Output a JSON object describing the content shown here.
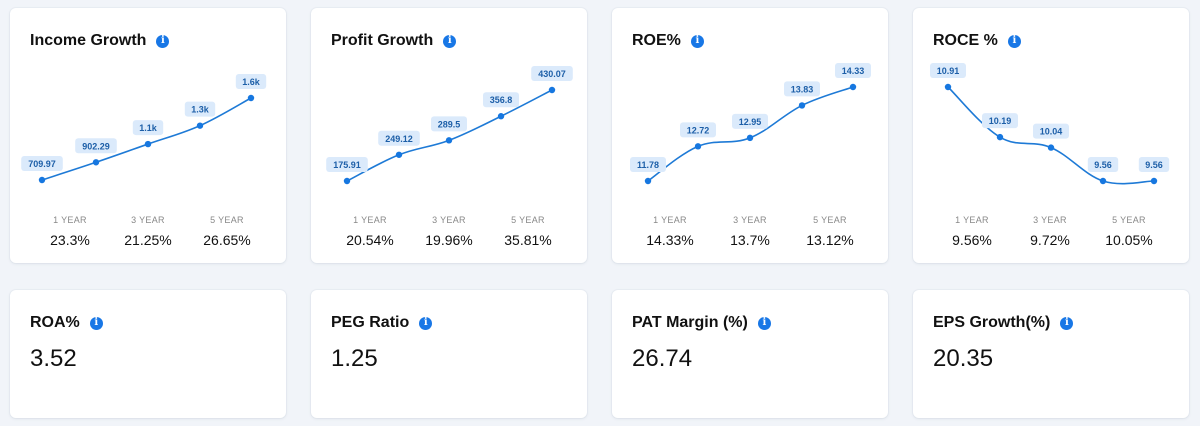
{
  "cards": [
    {
      "title": "Income Growth",
      "chart_data": {
        "type": "line",
        "x": [
          "0",
          "1",
          "2",
          "3",
          "4"
        ],
        "values": [
          709.97,
          902.29,
          1100,
          1300,
          1600
        ],
        "data_labels": [
          "709.97",
          "902.29",
          "1.1k",
          "1.3k",
          "1.6k"
        ]
      },
      "periods": [
        {
          "label": "1 YEAR",
          "value": "23.3%"
        },
        {
          "label": "3 YEAR",
          "value": "21.25%"
        },
        {
          "label": "5 YEAR",
          "value": "26.65%"
        }
      ]
    },
    {
      "title": "Profit Growth",
      "chart_data": {
        "type": "line",
        "x": [
          "0",
          "1",
          "2",
          "3",
          "4"
        ],
        "values": [
          175.91,
          249.12,
          289.5,
          356.8,
          430.07
        ],
        "data_labels": [
          "175.91",
          "249.12",
          "289.5",
          "356.8",
          "430.07"
        ]
      },
      "periods": [
        {
          "label": "1 YEAR",
          "value": "20.54%"
        },
        {
          "label": "3 YEAR",
          "value": "19.96%"
        },
        {
          "label": "5 YEAR",
          "value": "35.81%"
        }
      ]
    },
    {
      "title": "ROE%",
      "chart_data": {
        "type": "line",
        "x": [
          "0",
          "1",
          "2",
          "3",
          "4"
        ],
        "values": [
          11.78,
          12.72,
          12.95,
          13.83,
          14.33
        ],
        "data_labels": [
          "11.78",
          "12.72",
          "12.95",
          "13.83",
          "14.33"
        ]
      },
      "periods": [
        {
          "label": "1 YEAR",
          "value": "14.33%"
        },
        {
          "label": "3 YEAR",
          "value": "13.7%"
        },
        {
          "label": "5 YEAR",
          "value": "13.12%"
        }
      ]
    },
    {
      "title": "ROCE %",
      "chart_data": {
        "type": "line",
        "x": [
          "0",
          "1",
          "2",
          "3",
          "4"
        ],
        "values": [
          10.91,
          10.19,
          10.04,
          9.56,
          9.56
        ],
        "data_labels": [
          "10.91",
          "10.19",
          "10.04",
          "9.56",
          "9.56"
        ]
      },
      "periods": [
        {
          "label": "1 YEAR",
          "value": "9.56%"
        },
        {
          "label": "3 YEAR",
          "value": "9.72%"
        },
        {
          "label": "5 YEAR",
          "value": "10.05%"
        }
      ]
    }
  ],
  "metrics": [
    {
      "title": "ROA%",
      "value": "3.52"
    },
    {
      "title": "PEG Ratio",
      "value": "1.25"
    },
    {
      "title": "PAT Margin (%)",
      "value": "26.74"
    },
    {
      "title": "EPS Growth(%)",
      "value": "20.35"
    }
  ],
  "colors": {
    "line": "#1e7ad6",
    "point": "#1677e0",
    "label_bg": "#dbeafb",
    "label_text": "#1d5fa8",
    "info_icon": "#1877e6"
  },
  "icons": {
    "info": "info-icon"
  }
}
